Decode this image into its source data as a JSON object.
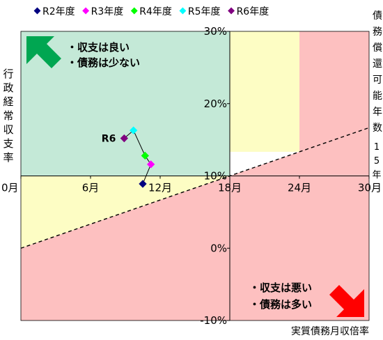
{
  "colors": {
    "green_zone": "#c4e9d7",
    "yellow_zone": "#fdfdc4",
    "red_zone": "#fdc0c0",
    "good_arrow": "#00a651",
    "bad_arrow": "#ff0000",
    "legend_label": "#0000ff"
  },
  "chart_data": {
    "type": "scatter",
    "xlabel": "実質債務月収倍率",
    "ylabel": "行政経常収支率",
    "right_label": "債務償還可能年数",
    "threshold_label": "15年",
    "xlim": [
      0,
      30
    ],
    "ylim": [
      -10,
      30
    ],
    "x_ticks": [
      {
        "v": 0,
        "label": "0月"
      },
      {
        "v": 6,
        "label": "6月"
      },
      {
        "v": 12,
        "label": "12月"
      },
      {
        "v": 18,
        "label": "18月"
      },
      {
        "v": 24,
        "label": "24月"
      },
      {
        "v": 30,
        "label": "30月"
      }
    ],
    "y_ticks": [
      {
        "v": 30,
        "label": "30%"
      },
      {
        "v": 20,
        "label": "20%"
      },
      {
        "v": 10,
        "label": "10%"
      },
      {
        "v": 0,
        "label": "0%"
      },
      {
        "v": -10,
        "label": "-10%"
      }
    ],
    "cross": {
      "x": 18,
      "y": 10
    },
    "threshold_line": {
      "from": [
        0,
        0
      ],
      "to": [
        30,
        16.67
      ],
      "style": "dashed"
    },
    "zone_notes": {
      "good": [
        "・収支は良い",
        "・債務は少ない"
      ],
      "bad": [
        "・収支は悪い",
        "・債務は多い"
      ]
    },
    "series": [
      {
        "name": "R2年度",
        "color": "#000080",
        "x": 10.5,
        "y": 8.9
      },
      {
        "name": "R3年度",
        "color": "#ff00ff",
        "x": 11.2,
        "y": 11.6
      },
      {
        "name": "R4年度",
        "color": "#00ff00",
        "x": 10.7,
        "y": 12.8
      },
      {
        "name": "R5年度",
        "color": "#00ffff",
        "x": 9.7,
        "y": 16.3
      },
      {
        "name": "R6年度",
        "color": "#800080",
        "x": 8.9,
        "y": 15.2
      }
    ],
    "point_label": {
      "text": "R6",
      "series": 4,
      "color": "#c00000"
    }
  }
}
